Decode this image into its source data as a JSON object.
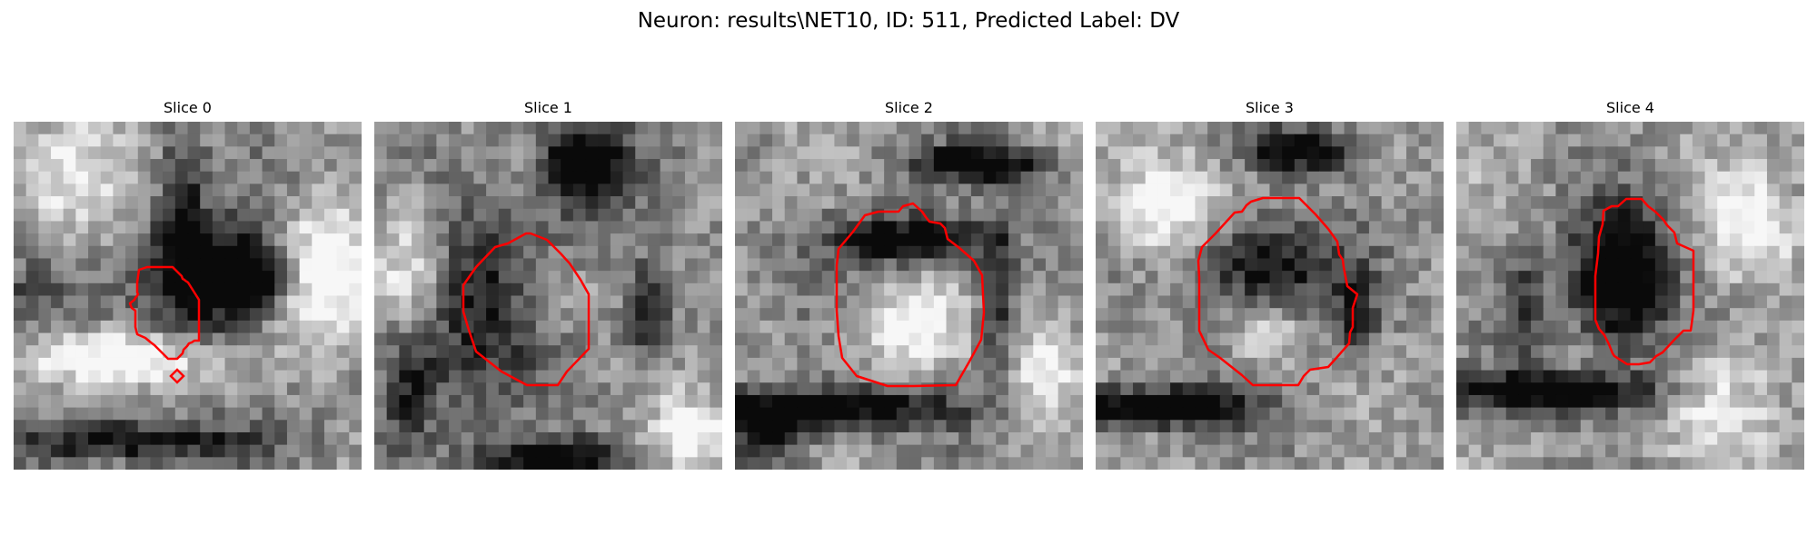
{
  "figure": {
    "title": "Neuron: results\\NET10, ID: 511, Predicted Label: DV"
  },
  "contour_color": "#ff0000",
  "panels": [
    {
      "title": "Slice 0",
      "seed": 11,
      "darks": [
        [
          0.58,
          0.45,
          0.16,
          0.15,
          0.82
        ],
        [
          0.73,
          0.45,
          0.08,
          0.08,
          0.6
        ],
        [
          0.48,
          0.25,
          0.06,
          0.2,
          0.5
        ],
        [
          0.05,
          0.5,
          0.15,
          0.12,
          0.3
        ],
        [
          0.35,
          0.92,
          0.35,
          0.06,
          0.55
        ]
      ],
      "lights": [
        [
          0.9,
          0.45,
          0.15,
          0.2,
          0.6
        ],
        [
          0.3,
          0.68,
          0.25,
          0.08,
          0.6
        ],
        [
          0.15,
          0.15,
          0.15,
          0.18,
          0.4
        ]
      ],
      "base": 0.55
    },
    {
      "title": "Slice 1",
      "seed": 23,
      "darks": [
        [
          0.6,
          0.12,
          0.12,
          0.12,
          0.7
        ],
        [
          0.3,
          0.5,
          0.25,
          0.28,
          0.45
        ],
        [
          0.78,
          0.55,
          0.06,
          0.12,
          0.6
        ],
        [
          0.5,
          0.97,
          0.2,
          0.06,
          0.7
        ],
        [
          0.1,
          0.75,
          0.08,
          0.15,
          0.4
        ]
      ],
      "lights": [
        [
          0.5,
          0.5,
          0.12,
          0.12,
          0.35
        ],
        [
          0.1,
          0.4,
          0.12,
          0.2,
          0.5
        ],
        [
          0.9,
          0.9,
          0.12,
          0.12,
          0.5
        ]
      ],
      "base": 0.55
    },
    {
      "title": "Slice 2",
      "seed": 37,
      "darks": [
        [
          0.5,
          0.34,
          0.22,
          0.07,
          0.7
        ],
        [
          0.72,
          0.12,
          0.2,
          0.05,
          0.75
        ],
        [
          0.3,
          0.82,
          0.35,
          0.06,
          0.7
        ],
        [
          0.1,
          0.9,
          0.12,
          0.08,
          0.5
        ],
        [
          0.75,
          0.5,
          0.05,
          0.2,
          0.5
        ]
      ],
      "lights": [
        [
          0.5,
          0.6,
          0.15,
          0.12,
          0.4
        ],
        [
          0.9,
          0.7,
          0.1,
          0.15,
          0.4
        ]
      ],
      "base": 0.57
    },
    {
      "title": "Slice 3",
      "seed": 51,
      "darks": [
        [
          0.6,
          0.08,
          0.15,
          0.06,
          0.7
        ],
        [
          0.5,
          0.42,
          0.2,
          0.14,
          0.6
        ],
        [
          0.15,
          0.82,
          0.3,
          0.06,
          0.8
        ],
        [
          0.75,
          0.55,
          0.05,
          0.12,
          0.5
        ]
      ],
      "lights": [
        [
          0.5,
          0.6,
          0.1,
          0.1,
          0.3
        ],
        [
          0.2,
          0.25,
          0.15,
          0.15,
          0.45
        ]
      ],
      "base": 0.58
    },
    {
      "title": "Slice 4",
      "seed": 67,
      "darks": [
        [
          0.47,
          0.45,
          0.14,
          0.2,
          0.85
        ],
        [
          0.28,
          0.78,
          0.35,
          0.06,
          0.7
        ],
        [
          0.2,
          0.55,
          0.06,
          0.18,
          0.4
        ]
      ],
      "lights": [
        [
          0.85,
          0.3,
          0.12,
          0.15,
          0.45
        ],
        [
          0.75,
          0.8,
          0.15,
          0.15,
          0.4
        ]
      ],
      "base": 0.6
    }
  ]
}
